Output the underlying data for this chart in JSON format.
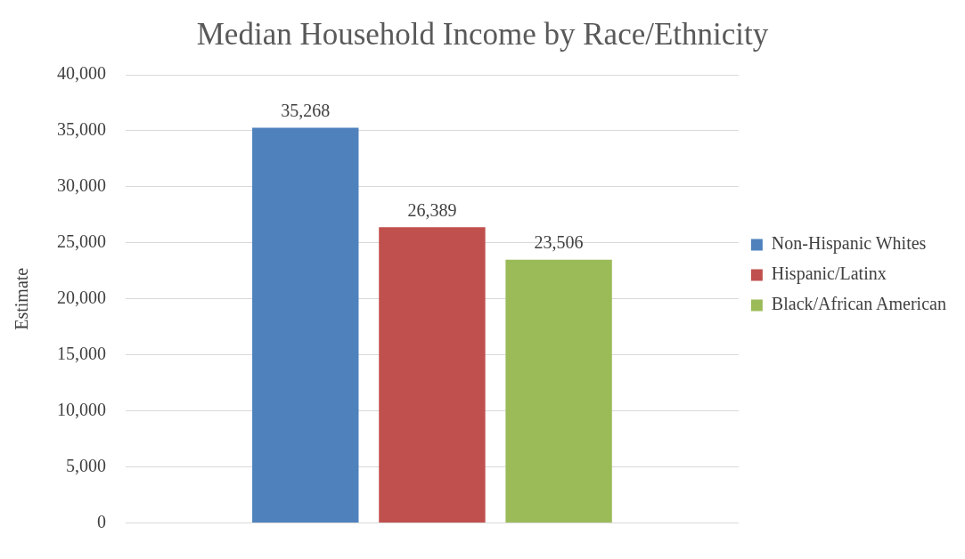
{
  "chart_data": {
    "type": "bar",
    "title": "Median Household Income by Race/Ethnicity",
    "ylabel": "Estimate",
    "categories": [
      null
    ],
    "series": [
      {
        "name": "Non-Hispanic Whites",
        "color": "#4f81bd",
        "values": [
          35268
        ],
        "value_labels": [
          "35,268"
        ]
      },
      {
        "name": "Hispanic/Latinx",
        "color": "#c0504d",
        "values": [
          26389
        ],
        "value_labels": [
          "26,389"
        ]
      },
      {
        "name": "Black/African American",
        "color": "#9bbb59",
        "values": [
          23506
        ],
        "value_labels": [
          "23,506"
        ]
      }
    ],
    "ylim": [
      0,
      40000
    ],
    "yticks": [
      {
        "value": 0,
        "label": "0"
      },
      {
        "value": 5000,
        "label": "5,000"
      },
      {
        "value": 10000,
        "label": "10,000"
      },
      {
        "value": 15000,
        "label": "15,000"
      },
      {
        "value": 20000,
        "label": "20,000"
      },
      {
        "value": 25000,
        "label": "25,000"
      },
      {
        "value": 30000,
        "label": "30,000"
      },
      {
        "value": 35000,
        "label": "35,000"
      },
      {
        "value": 40000,
        "label": "40,000"
      }
    ],
    "grid": "y",
    "legend": "right"
  }
}
